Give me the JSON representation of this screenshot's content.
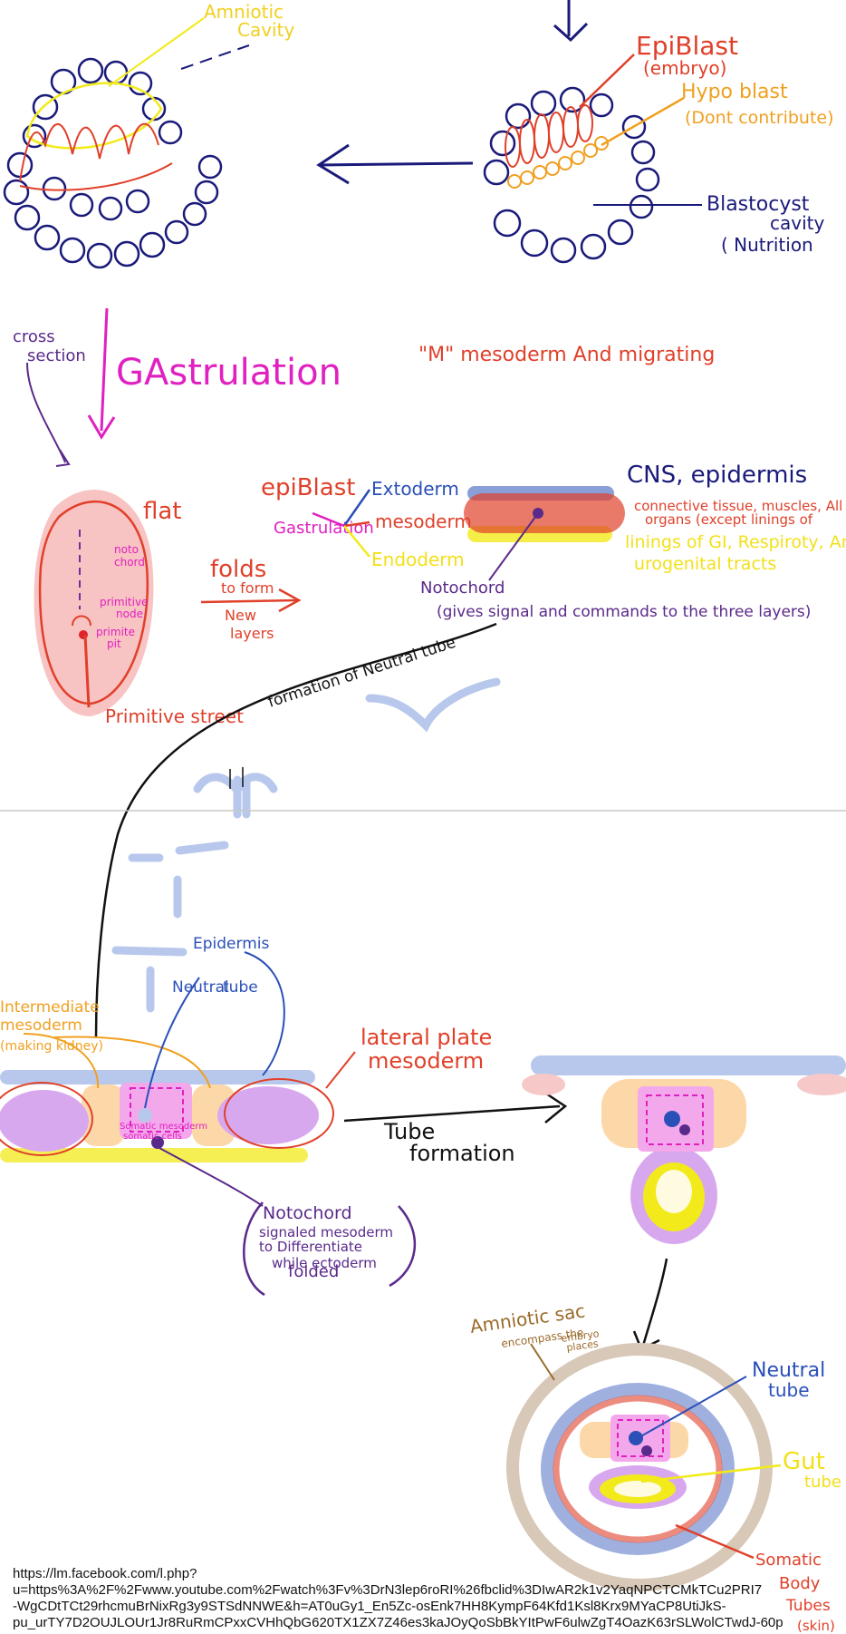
{
  "labels": {
    "amniotic_cavity_1": "Amniotic",
    "amniotic_cavity_2": "Cavity",
    "epiblast_embryo_1": "EpiBlast",
    "epiblast_embryo_2": "(embryo)",
    "hypoblast_1": "Hypo blast",
    "hypoblast_2": "(Dont contribute)",
    "blastocyst_1": "Blastocyst",
    "blastocyst_2": "cavity",
    "blastocyst_3": "( Nutrition",
    "cross_section_1": "cross",
    "cross_section_2": "section",
    "gastrulation_title": "GAstrulation",
    "m_mesoderm": "\"M\" mesoderm And migrating",
    "flat": "flat",
    "notochord_small_1": "noto",
    "notochord_small_2": "chord",
    "primitive_node_1": "primitive",
    "primitive_node_2": "node",
    "primitive_pit_1": "primite",
    "primitive_pit_2": "pit",
    "primitive_streak": "Primitive street",
    "folds_1": "folds",
    "folds_2": "to form",
    "folds_3": "New",
    "folds_4": "layers",
    "epiblast_2": "epiBlast",
    "gastrulation_small": "Gastrulation",
    "extoderm": "Extoderm",
    "mesoderm": "mesoderm",
    "endoderm": "Endoderm",
    "notochord_1": "Notochord",
    "cns": "CNS, epidermis",
    "connective_1": "connective tissue, muscles, All",
    "connective_2": "organs (except linings of",
    "linings_1": "linings of GI, Respiroty, And",
    "linings_2": "urogenital tracts",
    "signals": "(gives signal and commands to the three layers)",
    "neural_tube_formation": "formation of Neutral tube",
    "intermediate_1": "Intermediate",
    "intermediate_2": "mesoderm",
    "intermediate_3": "(making kidney)",
    "epidermis": "Epidermis",
    "neutral_tube_1": "Neutral",
    "neutral_tube_2": "tube",
    "somatic_1": "Somatic mesoderm",
    "somatic_2": "somatic cells",
    "lateral_1": "lateral plate",
    "lateral_2": "mesoderm",
    "tube_formation_1": "Tube",
    "tube_formation_2": "formation",
    "notochord_box_1": "Notochord",
    "notochord_box_2": "signaled mesoderm",
    "notochord_box_3": "to Differentiate",
    "notochord_box_4": "while ectoderm",
    "notochord_box_5": "folded",
    "amniotic_sac_1": "Amniotic sac",
    "amniotic_sac_2": "encompass the",
    "amniotic_sac_3": "embryo",
    "amniotic_sac_4": "places",
    "neutral_tube_b_1": "Neutral",
    "neutral_tube_b_2": "tube",
    "gut_tube_1": "Gut",
    "gut_tube_2": "tube",
    "somatic_body_1": "Somatic",
    "somatic_body_2": "Body",
    "somatic_body_3": "Tubes",
    "somatic_body_4": "(skin)"
  },
  "url_lines": [
    "https://lm.facebook.com/l.php?",
    "u=https%3A%2F%2Fwww.youtube.com%2Fwatch%3Fv%3DrN3lep6roRI%26fbclid%3DIwAR2k1v2YaqNPCTCMkTCu2PRI7",
    "-WgCDtTCt29rhcmuBrNixRg3y9STSdNNWE&h=AT0uGy1_En5Zc-osEnk7HH8KympF64Kfd1Ksl8Krx9MYaCP8UtiJkS-",
    "pu_urTY7D2OUJLOUr1Jr8RuRmCPxxCVHhQbG620TX1ZX7Z46es3kaJOyQoSbBkYItPwF6ulwZgT4OazK63rSLWolCTwdJ-60p"
  ],
  "colors": {
    "navy": "#1a1a7a",
    "red": "#e0402a",
    "orange": "#f0a020",
    "magenta": "#e020c0",
    "blue": "#2a50b8",
    "purple": "#5a2a8a",
    "yellow": "#f2ea1a",
    "pink_fill": "#f7b8b8",
    "lightblue": "#b8c8ec",
    "lavender": "#d8a8ee",
    "peach": "#fcd8a8",
    "tan": "#d8c8b8",
    "black": "#111111",
    "brown": "#9a6a2a"
  }
}
